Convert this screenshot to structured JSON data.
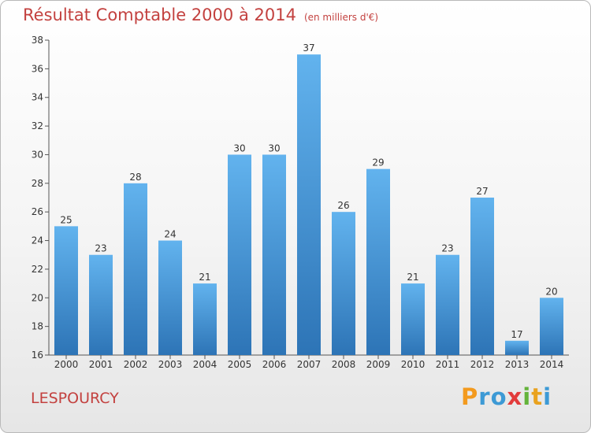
{
  "header": {
    "title": "Résultat Comptable 2000 à 2014",
    "unit": "(en milliers d'€)"
  },
  "footer": {
    "commune": "LESPOURCY",
    "logo": "Proxiti"
  },
  "colors": {
    "bar_light": "#62b3ee",
    "bar_dark": "#2d74b6",
    "title": "#c3413f"
  },
  "chart_data": {
    "type": "bar",
    "title": "Résultat Comptable 2000 à 2014",
    "subtitle": "(en milliers d'€)",
    "categories": [
      "2000",
      "2001",
      "2002",
      "2003",
      "2004",
      "2005",
      "2006",
      "2007",
      "2008",
      "2009",
      "2010",
      "2011",
      "2012",
      "2013",
      "2014"
    ],
    "values": [
      25,
      23,
      28,
      24,
      21,
      30,
      30,
      37,
      26,
      29,
      21,
      23,
      27,
      17,
      20
    ],
    "ylim": [
      16,
      38
    ],
    "yticks": [
      16,
      18,
      20,
      22,
      24,
      26,
      28,
      30,
      32,
      34,
      36,
      38
    ],
    "grid": false,
    "legend": "none"
  }
}
